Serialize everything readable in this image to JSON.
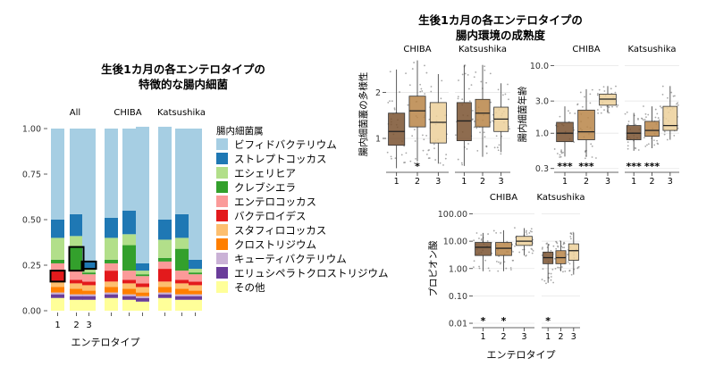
{
  "left": {
    "title_line1": "生後1カ月の各エンテロタイプの",
    "title_line2": "特徴的な腸内細菌",
    "legend_title": "腸内細菌属",
    "xlabel": "エンテロタイプ",
    "facets": [
      "All",
      "CHIBA",
      "Katsushika"
    ]
  },
  "right": {
    "title_line1": "生後1カ月の各エンテロタイプの",
    "title_line2": "腸内環境の成熟度",
    "xlabel": "エンテロタイプ"
  },
  "colors": {
    "bifido": "#a6cee3",
    "strepto": "#1f78b4",
    "escherichia": "#b2df8a",
    "klebsiella": "#33a02c",
    "enterococcus": "#fb9a99",
    "bacteroides": "#e31a1c",
    "staphylococcus": "#fdbf6f",
    "clostridium": "#ff7f00",
    "cutibacterium": "#cab2d6",
    "erysipelato": "#6a3d9a",
    "other": "#ffff99",
    "box_1": "#7a5230",
    "box_2": "#b98548",
    "box_3": "#ecd09a"
  },
  "chart_data": [
    {
      "type": "bar",
      "subtype": "stacked-100",
      "facets": [
        "All",
        "CHIBA",
        "Katsushika"
      ],
      "categories": [
        "1",
        "2",
        "3"
      ],
      "ylim": [
        0,
        1
      ],
      "yticks": [
        "0.00",
        "0.25",
        "0.50",
        "0.75",
        "1.00"
      ],
      "highlighted": [
        {
          "facet": "All",
          "category": "1",
          "series": "バクテロイデス"
        },
        {
          "facet": "All",
          "category": "2",
          "series": "クレブシエラ"
        },
        {
          "facet": "All",
          "category": "3",
          "series": "ストレプトコッカス"
        }
      ],
      "series": [
        {
          "name": "その他",
          "color_key": "other",
          "values": {
            "All": [
              0.07,
              0.06,
              0.06
            ],
            "CHIBA": [
              0.07,
              0.06,
              0.05
            ],
            "Katsushika": [
              0.07,
              0.06,
              0.06
            ]
          }
        },
        {
          "name": "エリュシペラトクロストリジウム",
          "color_key": "erysipelato",
          "values": {
            "All": [
              0.02,
              0.02,
              0.02
            ],
            "CHIBA": [
              0.02,
              0.02,
              0.02
            ],
            "Katsushika": [
              0.02,
              0.02,
              0.02
            ]
          }
        },
        {
          "name": "キューティバクテリウム",
          "color_key": "cutibacterium",
          "values": {
            "All": [
              0.01,
              0.01,
              0.01
            ],
            "CHIBA": [
              0.01,
              0.01,
              0.01
            ],
            "Katsushika": [
              0.01,
              0.01,
              0.01
            ]
          }
        },
        {
          "name": "クロストリジウム",
          "color_key": "clostridium",
          "values": {
            "All": [
              0.03,
              0.03,
              0.02
            ],
            "CHIBA": [
              0.03,
              0.03,
              0.02
            ],
            "Katsushika": [
              0.03,
              0.03,
              0.02
            ]
          }
        },
        {
          "name": "スタフィロコッカス",
          "color_key": "staphylococcus",
          "values": {
            "All": [
              0.03,
              0.03,
              0.03
            ],
            "CHIBA": [
              0.03,
              0.03,
              0.03
            ],
            "Katsushika": [
              0.03,
              0.03,
              0.03
            ]
          }
        },
        {
          "name": "バクテロイデス",
          "color_key": "bacteroides",
          "values": {
            "All": [
              0.06,
              0.02,
              0.02
            ],
            "CHIBA": [
              0.06,
              0.02,
              0.02
            ],
            "Katsushika": [
              0.07,
              0.02,
              0.02
            ]
          }
        },
        {
          "name": "エンテロコッカス",
          "color_key": "enterococcus",
          "values": {
            "All": [
              0.04,
              0.05,
              0.04
            ],
            "CHIBA": [
              0.04,
              0.05,
              0.04
            ],
            "Katsushika": [
              0.04,
              0.05,
              0.04
            ]
          }
        },
        {
          "name": "クレブシエラ",
          "color_key": "klebsiella",
          "values": {
            "All": [
              0.02,
              0.13,
              0.01
            ],
            "CHIBA": [
              0.02,
              0.14,
              0.01
            ],
            "Katsushika": [
              0.02,
              0.12,
              0.01
            ]
          }
        },
        {
          "name": "エシェリヒア",
          "color_key": "escherichia",
          "values": {
            "All": [
              0.12,
              0.06,
              0.02
            ],
            "CHIBA": [
              0.12,
              0.06,
              0.02
            ],
            "Katsushika": [
              0.1,
              0.06,
              0.02
            ]
          }
        },
        {
          "name": "ストレプトコッカス",
          "color_key": "strepto",
          "values": {
            "All": [
              0.1,
              0.12,
              0.04
            ],
            "CHIBA": [
              0.11,
              0.13,
              0.04
            ],
            "Katsushika": [
              0.11,
              0.13,
              0.05
            ]
          }
        },
        {
          "name": "ビフィドバクテリウム",
          "color_key": "bifido",
          "values": {
            "All": [
              0.5,
              0.47,
              0.73
            ],
            "CHIBA": [
              0.49,
              0.45,
              0.75
            ],
            "Katsushika": [
              0.51,
              0.47,
              0.72
            ]
          }
        }
      ],
      "legend_order": [
        "ビフィドバクテリウム",
        "ストレプトコッカス",
        "エシェリヒア",
        "クレブシエラ",
        "エンテロコッカス",
        "バクテロイデス",
        "スタフィロコッカス",
        "クロストリジウム",
        "キューティバクテリウム",
        "エリュシペラトクロストリジウム",
        "その他"
      ]
    },
    {
      "type": "box",
      "ylabel": "腸内細菌叢の多様性",
      "facets": [
        "CHIBA",
        "Katsushika"
      ],
      "categories": [
        "1",
        "2",
        "3"
      ],
      "ylim": [
        0.3,
        2.75
      ],
      "yticks": [
        {
          "v": 1,
          "label": "1"
        },
        {
          "v": 2,
          "label": "2"
        }
      ],
      "boxes": {
        "CHIBA": [
          {
            "q1": 0.85,
            "med": 1.15,
            "q3": 1.55,
            "lo": 0.35,
            "hi": 2.5
          },
          {
            "q1": 1.25,
            "med": 1.6,
            "q3": 1.92,
            "lo": 0.5,
            "hi": 2.7
          },
          {
            "q1": 0.9,
            "med": 1.35,
            "q3": 1.78,
            "lo": 0.45,
            "hi": 2.4
          }
        ],
        "Katsushika": [
          {
            "q1": 0.95,
            "med": 1.38,
            "q3": 1.78,
            "lo": 0.4,
            "hi": 2.6
          },
          {
            "q1": 1.25,
            "med": 1.55,
            "q3": 1.85,
            "lo": 0.6,
            "hi": 2.6
          },
          {
            "q1": 1.15,
            "med": 1.42,
            "q3": 1.68,
            "lo": 0.7,
            "hi": 2.2
          }
        ]
      },
      "significance": {
        "CHIBA": [
          "",
          "*",
          ""
        ],
        "Katsushika": [
          "",
          "",
          ""
        ]
      }
    },
    {
      "type": "box",
      "ylabel": "腸内細菌年齢",
      "facets": [
        "CHIBA",
        "Katsushika"
      ],
      "categories": [
        "1",
        "2",
        "3"
      ],
      "scale": "log10",
      "ylim": [
        0.28,
        13
      ],
      "yticks": [
        {
          "v": 0.3,
          "label": "0.3"
        },
        {
          "v": 1,
          "label": "1.0"
        },
        {
          "v": 3,
          "label": "3.0"
        },
        {
          "v": 10,
          "label": "10.0"
        }
      ],
      "boxes": {
        "CHIBA": [
          {
            "q1": 0.75,
            "med": 1.0,
            "q3": 1.45,
            "lo": 0.45,
            "hi": 2.5
          },
          {
            "q1": 0.8,
            "med": 1.05,
            "q3": 2.2,
            "lo": 0.45,
            "hi": 4.5
          },
          {
            "q1": 2.6,
            "med": 3.2,
            "q3": 3.8,
            "lo": 2.0,
            "hi": 5.0
          }
        ],
        "Katsushika": [
          {
            "q1": 0.8,
            "med": 1.0,
            "q3": 1.3,
            "lo": 0.55,
            "hi": 2.0
          },
          {
            "q1": 0.9,
            "med": 1.1,
            "q3": 1.5,
            "lo": 0.6,
            "hi": 2.5
          },
          {
            "q1": 1.1,
            "med": 1.3,
            "q3": 2.5,
            "lo": 0.8,
            "hi": 5.0
          }
        ]
      },
      "significance": {
        "CHIBA": [
          "***",
          "***",
          ""
        ],
        "Katsushika": [
          "***",
          "***",
          ""
        ]
      }
    },
    {
      "type": "box",
      "ylabel": "プロピオン酸",
      "xlabel": "エンテロタイプ",
      "facets": [
        "CHIBA",
        "Katsushika"
      ],
      "categories": [
        "1",
        "2",
        "3"
      ],
      "scale": "log10",
      "ylim": [
        0.008,
        130
      ],
      "yticks": [
        {
          "v": 0.01,
          "label": "0.01"
        },
        {
          "v": 0.1,
          "label": "0.10"
        },
        {
          "v": 1,
          "label": "1.00"
        },
        {
          "v": 10,
          "label": "10.00"
        },
        {
          "v": 100,
          "label": "100.00"
        }
      ],
      "boxes": {
        "CHIBA": [
          {
            "q1": 3.0,
            "med": 6.0,
            "q3": 9.0,
            "lo": 0.8,
            "hi": 20
          },
          {
            "q1": 3.0,
            "med": 5.5,
            "q3": 9.0,
            "lo": 0.8,
            "hi": 25
          },
          {
            "q1": 7.0,
            "med": 10,
            "q3": 15,
            "lo": 3,
            "hi": 30
          }
        ],
        "Katsushika": [
          {
            "q1": 1.5,
            "med": 2.5,
            "q3": 4.0,
            "lo": 0.3,
            "hi": 8
          },
          {
            "q1": 1.5,
            "med": 2.5,
            "q3": 4.5,
            "lo": 0.8,
            "hi": 10
          },
          {
            "q1": 2.0,
            "med": 4.5,
            "q3": 8.0,
            "lo": 0.6,
            "hi": 20
          }
        ]
      },
      "significance": {
        "CHIBA": [
          "*",
          "*",
          ""
        ],
        "Katsushika": [
          "*",
          "",
          ""
        ]
      }
    }
  ]
}
